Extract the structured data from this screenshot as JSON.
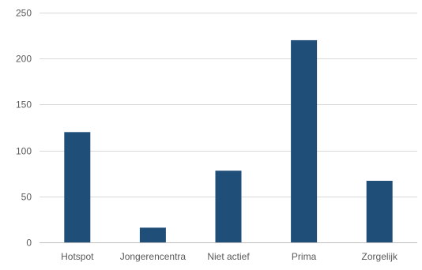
{
  "chart_data": {
    "type": "bar",
    "title": "",
    "xlabel": "",
    "ylabel": "",
    "categories": [
      "Hotspot",
      "Jongerencentra",
      "Niet actief",
      "Prima",
      "Zorgelijk"
    ],
    "values": [
      120,
      16,
      78,
      220,
      67
    ],
    "ylim": [
      0,
      250
    ],
    "yticks": [
      0,
      50,
      100,
      150,
      200,
      250
    ],
    "grid": true,
    "legend": "none",
    "colors": {
      "bar": "#1f4e79",
      "grid": "#d9d9d9",
      "axis": "#bfbfbf",
      "text": "#595959"
    }
  }
}
